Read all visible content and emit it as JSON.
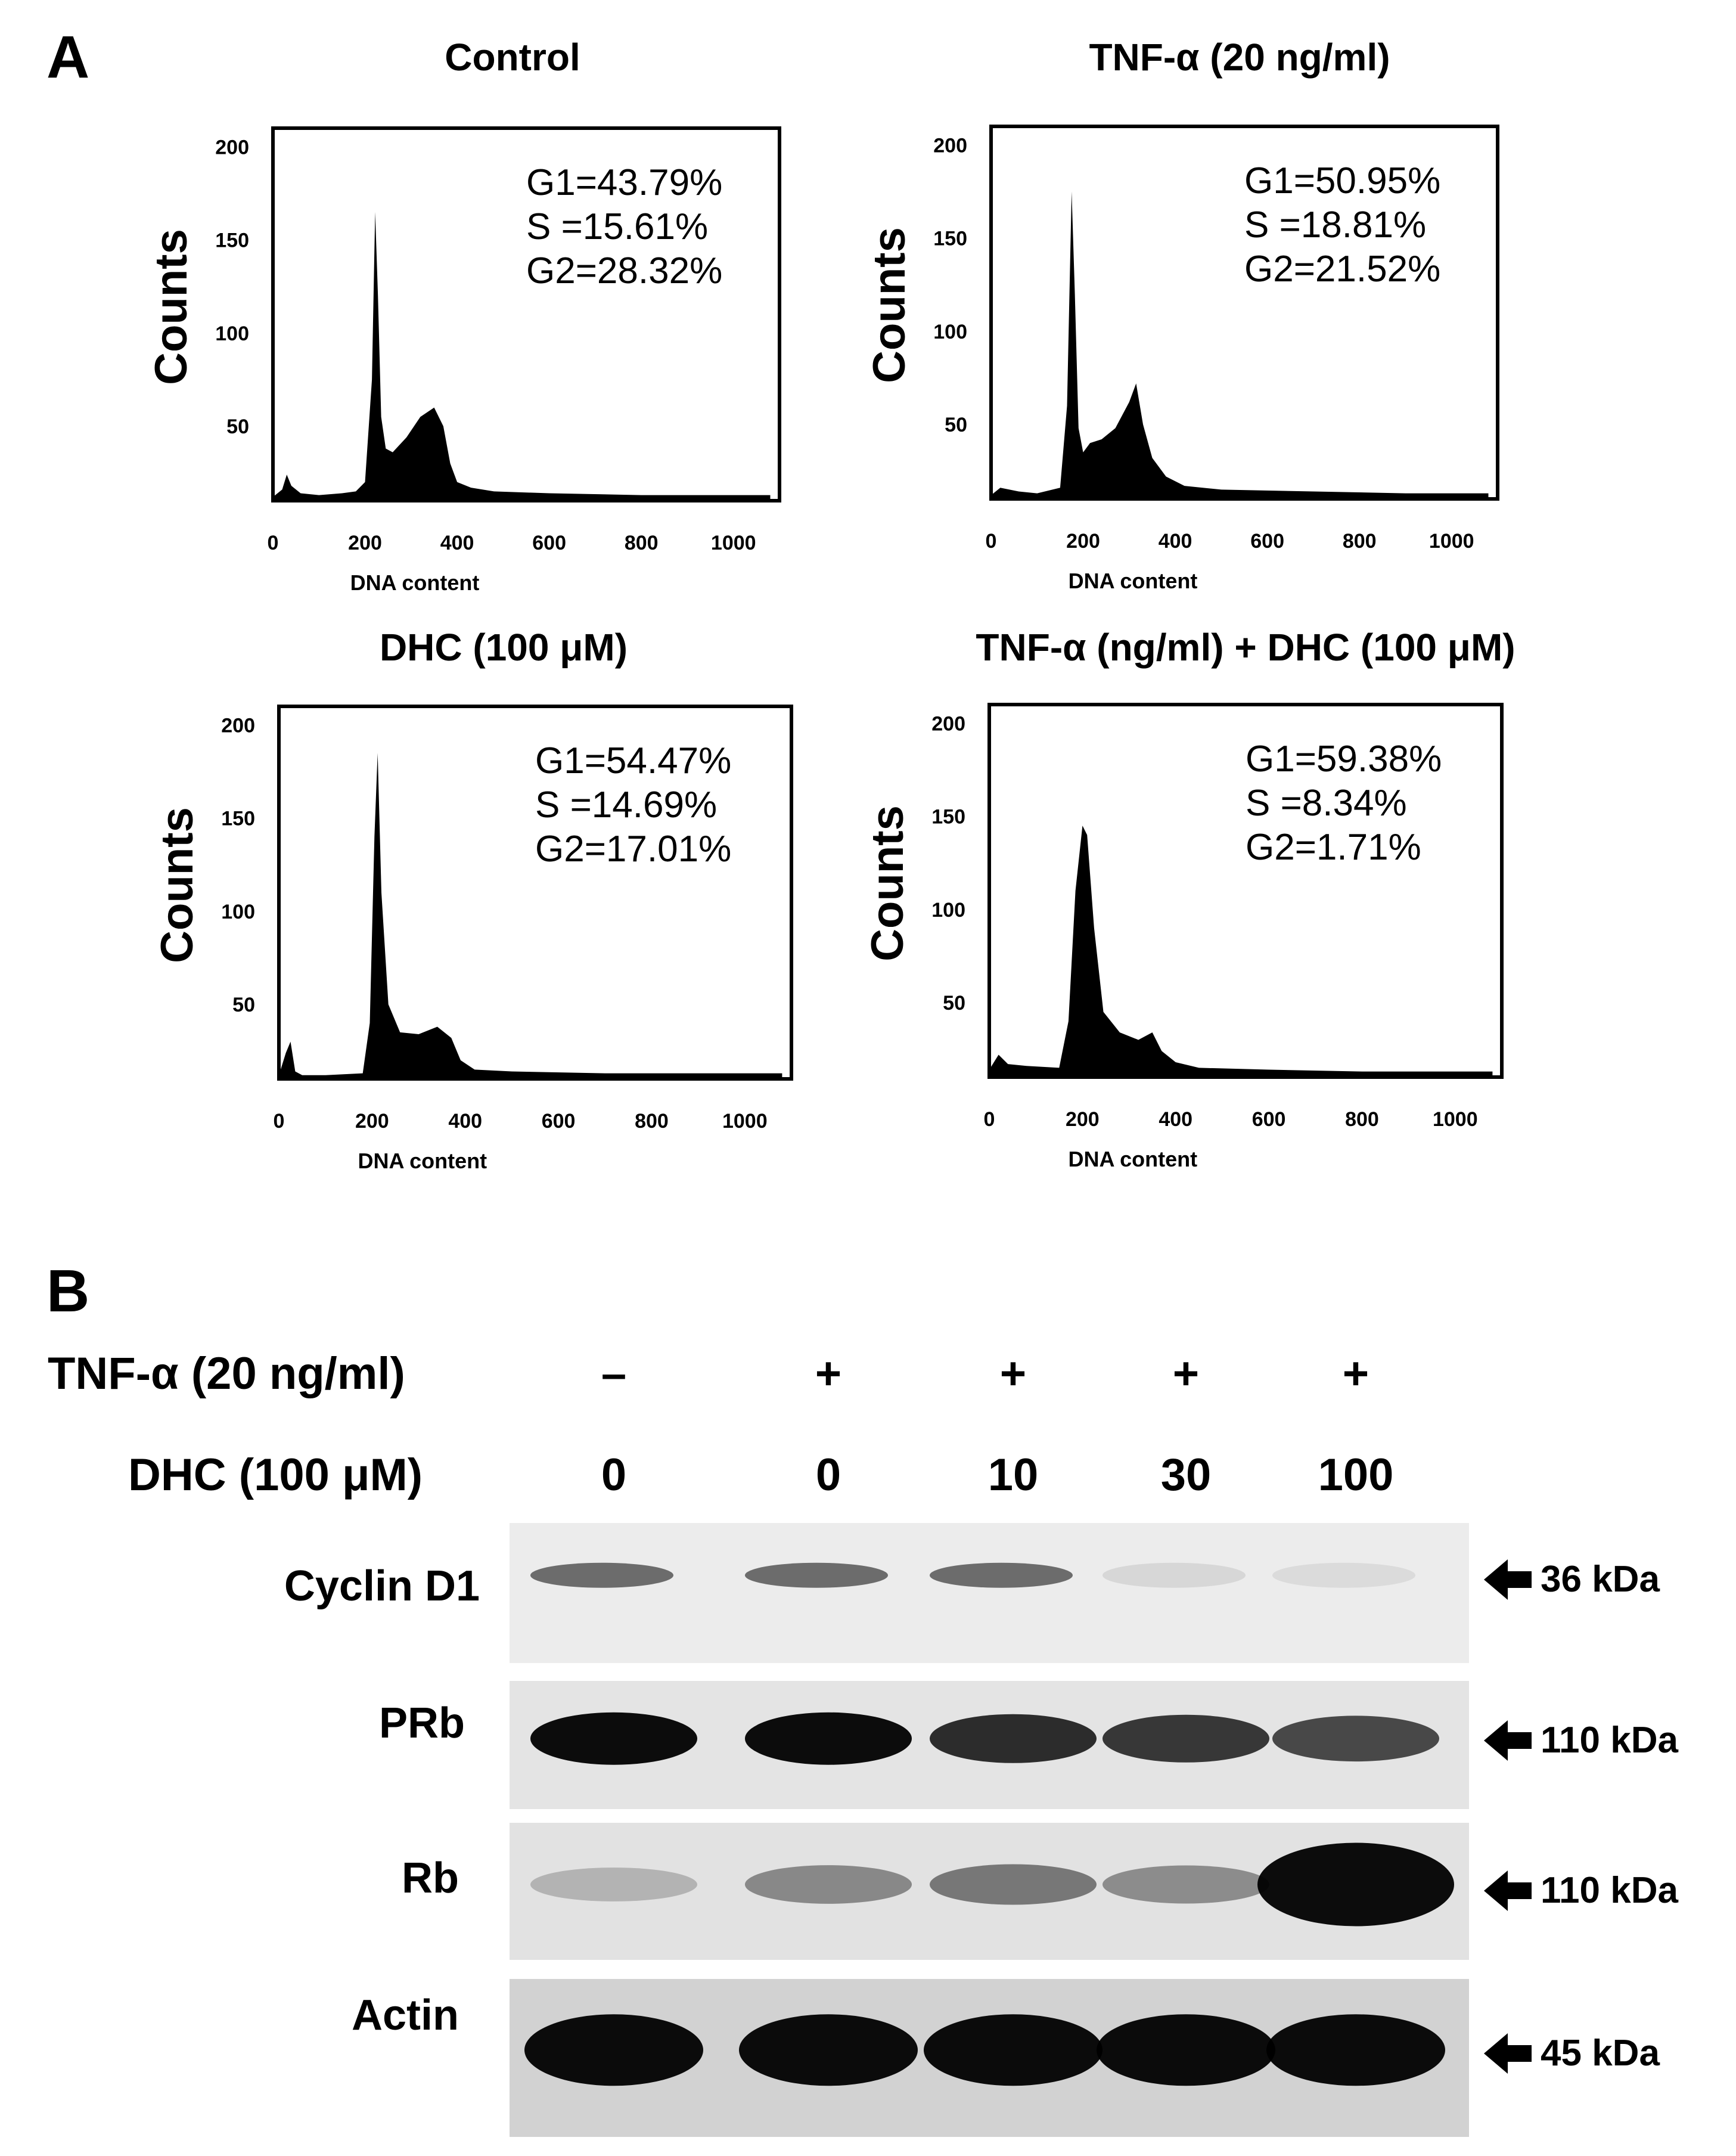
{
  "panels": {
    "a": "A",
    "b": "B"
  },
  "chart_data": [
    {
      "type": "area",
      "title": "Control",
      "xlabel": "DNA content",
      "ylabel": "Counts",
      "xlim": [
        0,
        1100
      ],
      "ylim": [
        10,
        210
      ],
      "xticks": [
        "0",
        "200",
        "400",
        "600",
        "800",
        "1000"
      ],
      "yticks": [
        "50",
        "100",
        "150",
        "200"
      ],
      "annotations": [
        "G1=43.79%",
        "S   =15.61%",
        "G2=28.32%"
      ],
      "series": [
        {
          "x": [
            0,
            20,
            30,
            40,
            60,
            100,
            150,
            180,
            200,
            215,
            222,
            228,
            235,
            245,
            260,
            290,
            320,
            350,
            370,
            385,
            400,
            430,
            480,
            600,
            800,
            1000,
            1080
          ],
          "values": [
            12,
            16,
            24,
            18,
            14,
            13,
            14,
            15,
            20,
            75,
            165,
            120,
            55,
            38,
            36,
            44,
            55,
            60,
            50,
            30,
            20,
            17,
            15,
            14,
            13,
            13,
            13
          ]
        }
      ]
    },
    {
      "type": "area",
      "title": "TNF-α (20 ng/ml)",
      "xlabel": "DNA content",
      "ylabel": "Counts",
      "xlim": [
        0,
        1100
      ],
      "ylim": [
        10,
        210
      ],
      "xticks": [
        "0",
        "200",
        "400",
        "600",
        "800",
        "1000"
      ],
      "yticks": [
        "50",
        "100",
        "150",
        "200"
      ],
      "annotations": [
        "G1=50.95%",
        "S   =18.81%",
        "G2=21.52%"
      ],
      "series": [
        {
          "x": [
            0,
            20,
            60,
            100,
            150,
            165,
            175,
            182,
            190,
            200,
            215,
            240,
            270,
            300,
            315,
            330,
            350,
            380,
            420,
            500,
            700,
            900,
            1080
          ],
          "values": [
            12,
            16,
            14,
            13,
            16,
            60,
            175,
            120,
            48,
            35,
            40,
            42,
            48,
            62,
            72,
            50,
            32,
            22,
            17,
            15,
            14,
            13,
            13
          ]
        }
      ]
    },
    {
      "type": "area",
      "title": "DHC (100 μM)",
      "xlabel": "DNA content",
      "ylabel": "Counts",
      "xlim": [
        0,
        1100
      ],
      "ylim": [
        10,
        210
      ],
      "xticks": [
        "0",
        "200",
        "400",
        "600",
        "800",
        "1000"
      ],
      "yticks": [
        "50",
        "100",
        "150",
        "200"
      ],
      "annotations": [
        "G1=54.47%",
        "S   =14.69%",
        "G2=17.01%"
      ],
      "series": [
        {
          "x": [
            0,
            15,
            25,
            35,
            50,
            100,
            180,
            195,
            205,
            212,
            220,
            235,
            260,
            300,
            340,
            370,
            390,
            420,
            500,
            700,
            900,
            1080
          ],
          "values": [
            12,
            24,
            30,
            14,
            12,
            12,
            13,
            40,
            140,
            185,
            110,
            50,
            35,
            34,
            38,
            32,
            20,
            15,
            14,
            13,
            13,
            13
          ]
        }
      ]
    },
    {
      "type": "area",
      "title": "TNF-α (ng/ml) + DHC (100 μM)",
      "xlabel": "DNA content",
      "ylabel": "Counts",
      "xlim": [
        0,
        1100
      ],
      "ylim": [
        10,
        210
      ],
      "xticks": [
        "0",
        "200",
        "400",
        "600",
        "800",
        "1000"
      ],
      "yticks": [
        "50",
        "100",
        "150",
        "200"
      ],
      "annotations": [
        "G1=59.38%",
        "S   =8.34%",
        "G2=1.71%"
      ],
      "series": [
        {
          "x": [
            0,
            20,
            40,
            80,
            150,
            170,
            185,
            200,
            210,
            225,
            245,
            280,
            320,
            350,
            370,
            400,
            450,
            600,
            800,
            1000,
            1080
          ],
          "values": [
            14,
            22,
            17,
            16,
            15,
            40,
            110,
            145,
            140,
            90,
            45,
            34,
            30,
            34,
            24,
            18,
            15,
            14,
            13,
            13,
            13
          ]
        }
      ]
    }
  ],
  "western_blot": {
    "treatments": [
      {
        "label": "TNF-α (20 ng/ml)",
        "values": [
          "–",
          "+",
          "+",
          "+",
          "+"
        ]
      },
      {
        "label": "DHC (100 μM)",
        "values": [
          "0",
          "0",
          "10",
          "30",
          "100"
        ]
      }
    ],
    "rows": [
      {
        "label": "Cyclin D1",
        "kda": "36 kDa",
        "intensities": [
          0.55,
          0.55,
          0.55,
          0.05,
          0.03
        ],
        "bg": "#ececec"
      },
      {
        "label": "PRb",
        "kda": "110 kDa",
        "intensities": [
          1.0,
          1.0,
          0.85,
          0.8,
          0.72
        ],
        "bg": "#e4e4e4"
      },
      {
        "label": "Rb",
        "kda": "110 kDa",
        "intensities": [
          0.22,
          0.42,
          0.5,
          0.4,
          1.0
        ],
        "bg": "#e2e2e2"
      },
      {
        "label": "Actin",
        "kda": "45 kDa",
        "intensities": [
          1.0,
          1.0,
          1.0,
          1.0,
          1.0
        ],
        "bg": "#d2d2d2"
      }
    ]
  }
}
